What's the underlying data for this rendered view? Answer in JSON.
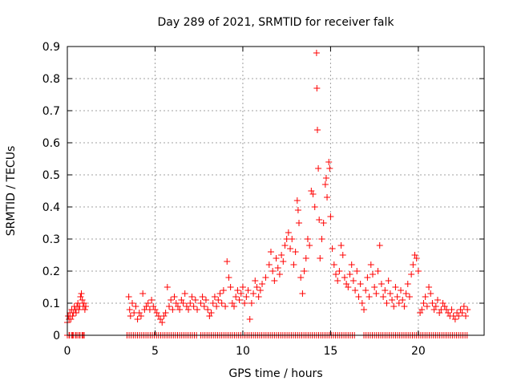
{
  "chart_data": {
    "type": "scatter",
    "title": "Day 289 of 2021, SRMTID for receiver falk",
    "xlabel": "GPS time / hours",
    "ylabel": "SRMTID / TECUs",
    "xlim": [
      0,
      23.75
    ],
    "ylim": [
      0,
      0.9
    ],
    "xticks": [
      0,
      5,
      10,
      15,
      20
    ],
    "xtick_labels": [
      "0",
      "5",
      "10",
      "15",
      "20"
    ],
    "yticks": [
      0,
      0.1,
      0.2,
      0.3,
      0.4,
      0.5,
      0.6,
      0.7,
      0.8,
      0.9
    ],
    "ytick_labels": [
      "0",
      "0.1",
      "0.2",
      "0.3",
      "0.4",
      "0.5",
      "0.6",
      "0.7",
      "0.8",
      "0.9"
    ],
    "grid": true,
    "series": [
      {
        "name": "SRMTID",
        "color": "#ff0000",
        "marker": "plus",
        "points": [
          [
            0.0,
            0.04
          ],
          [
            0.05,
            0.06
          ],
          [
            0.1,
            0.05
          ],
          [
            0.15,
            0.07
          ],
          [
            0.2,
            0.05
          ],
          [
            0.25,
            0.08
          ],
          [
            0.3,
            0.06
          ],
          [
            0.35,
            0.07
          ],
          [
            0.4,
            0.09
          ],
          [
            0.45,
            0.08
          ],
          [
            0.5,
            0.07
          ],
          [
            0.55,
            0.09
          ],
          [
            0.6,
            0.1
          ],
          [
            0.65,
            0.08
          ],
          [
            0.7,
            0.09
          ],
          [
            0.75,
            0.12
          ],
          [
            0.8,
            0.13
          ],
          [
            0.85,
            0.11
          ],
          [
            0.9,
            0.09
          ],
          [
            0.95,
            0.1
          ],
          [
            1.0,
            0.08
          ],
          [
            1.05,
            0.09
          ],
          [
            0.1,
            0.0
          ],
          [
            0.3,
            0.0
          ],
          [
            0.5,
            0.0
          ],
          [
            0.7,
            0.0
          ],
          [
            0.9,
            0.0
          ],
          [
            3.5,
            0.12
          ],
          [
            3.55,
            0.08
          ],
          [
            3.6,
            0.06
          ],
          [
            3.7,
            0.1
          ],
          [
            3.8,
            0.07
          ],
          [
            3.9,
            0.09
          ],
          [
            4.0,
            0.05
          ],
          [
            4.1,
            0.07
          ],
          [
            4.2,
            0.06
          ],
          [
            4.3,
            0.13
          ],
          [
            4.4,
            0.08
          ],
          [
            4.5,
            0.09
          ],
          [
            4.6,
            0.1
          ],
          [
            4.7,
            0.08
          ],
          [
            4.8,
            0.11
          ],
          [
            4.9,
            0.09
          ],
          [
            5.0,
            0.08
          ],
          [
            5.1,
            0.07
          ],
          [
            5.2,
            0.06
          ],
          [
            5.3,
            0.05
          ],
          [
            5.4,
            0.04
          ],
          [
            5.5,
            0.06
          ],
          [
            5.6,
            0.07
          ],
          [
            5.7,
            0.15
          ],
          [
            5.8,
            0.09
          ],
          [
            5.9,
            0.11
          ],
          [
            6.0,
            0.08
          ],
          [
            6.1,
            0.12
          ],
          [
            6.2,
            0.1
          ],
          [
            6.3,
            0.09
          ],
          [
            6.4,
            0.08
          ],
          [
            6.5,
            0.11
          ],
          [
            6.6,
            0.1
          ],
          [
            6.7,
            0.13
          ],
          [
            6.8,
            0.09
          ],
          [
            6.9,
            0.08
          ],
          [
            7.0,
            0.1
          ],
          [
            7.1,
            0.12
          ],
          [
            7.2,
            0.09
          ],
          [
            7.3,
            0.11
          ],
          [
            7.4,
            0.08
          ],
          [
            7.6,
            0.1
          ],
          [
            7.7,
            0.12
          ],
          [
            7.8,
            0.09
          ],
          [
            7.9,
            0.11
          ],
          [
            8.0,
            0.08
          ],
          [
            8.1,
            0.06
          ],
          [
            8.2,
            0.07
          ],
          [
            8.3,
            0.1
          ],
          [
            8.4,
            0.12
          ],
          [
            8.5,
            0.09
          ],
          [
            8.6,
            0.11
          ],
          [
            8.7,
            0.13
          ],
          [
            8.8,
            0.1
          ],
          [
            8.9,
            0.14
          ],
          [
            9.0,
            0.09
          ],
          [
            9.1,
            0.23
          ],
          [
            9.2,
            0.18
          ],
          [
            9.3,
            0.15
          ],
          [
            9.4,
            0.1
          ],
          [
            9.5,
            0.09
          ],
          [
            9.6,
            0.12
          ],
          [
            9.7,
            0.14
          ],
          [
            9.8,
            0.11
          ],
          [
            9.9,
            0.13
          ],
          [
            10.0,
            0.15
          ],
          [
            10.1,
            0.1
          ],
          [
            10.2,
            0.12
          ],
          [
            10.3,
            0.14
          ],
          [
            10.4,
            0.05
          ],
          [
            10.5,
            0.1
          ],
          [
            10.6,
            0.13
          ],
          [
            10.7,
            0.17
          ],
          [
            10.8,
            0.15
          ],
          [
            10.9,
            0.12
          ],
          [
            11.0,
            0.14
          ],
          [
            11.1,
            0.16
          ],
          [
            11.3,
            0.18
          ],
          [
            11.5,
            0.22
          ],
          [
            11.6,
            0.26
          ],
          [
            11.7,
            0.2
          ],
          [
            11.8,
            0.17
          ],
          [
            11.9,
            0.24
          ],
          [
            12.0,
            0.21
          ],
          [
            12.1,
            0.19
          ],
          [
            12.2,
            0.25
          ],
          [
            12.3,
            0.23
          ],
          [
            12.4,
            0.28
          ],
          [
            12.5,
            0.3
          ],
          [
            12.6,
            0.32
          ],
          [
            12.7,
            0.27
          ],
          [
            12.8,
            0.3
          ],
          [
            12.9,
            0.22
          ],
          [
            13.0,
            0.26
          ],
          [
            13.1,
            0.42
          ],
          [
            13.15,
            0.39
          ],
          [
            13.2,
            0.35
          ],
          [
            13.3,
            0.18
          ],
          [
            13.4,
            0.13
          ],
          [
            13.5,
            0.2
          ],
          [
            13.6,
            0.24
          ],
          [
            13.7,
            0.3
          ],
          [
            13.8,
            0.28
          ],
          [
            13.9,
            0.45
          ],
          [
            14.0,
            0.44
          ],
          [
            14.1,
            0.4
          ],
          [
            14.2,
            0.88
          ],
          [
            14.22,
            0.77
          ],
          [
            14.25,
            0.64
          ],
          [
            14.3,
            0.52
          ],
          [
            14.35,
            0.36
          ],
          [
            14.4,
            0.24
          ],
          [
            14.5,
            0.3
          ],
          [
            14.6,
            0.35
          ],
          [
            14.7,
            0.47
          ],
          [
            14.75,
            0.49
          ],
          [
            14.8,
            0.43
          ],
          [
            14.9,
            0.54
          ],
          [
            14.95,
            0.52
          ],
          [
            15.0,
            0.37
          ],
          [
            15.1,
            0.27
          ],
          [
            15.2,
            0.22
          ],
          [
            15.3,
            0.19
          ],
          [
            15.4,
            0.17
          ],
          [
            15.5,
            0.2
          ],
          [
            15.6,
            0.28
          ],
          [
            15.7,
            0.25
          ],
          [
            15.8,
            0.18
          ],
          [
            15.9,
            0.16
          ],
          [
            16.0,
            0.15
          ],
          [
            16.1,
            0.19
          ],
          [
            16.2,
            0.22
          ],
          [
            16.3,
            0.17
          ],
          [
            16.4,
            0.14
          ],
          [
            16.5,
            0.2
          ],
          [
            16.6,
            0.12
          ],
          [
            16.7,
            0.16
          ],
          [
            16.8,
            0.1
          ],
          [
            16.9,
            0.08
          ],
          [
            17.0,
            0.14
          ],
          [
            17.1,
            0.18
          ],
          [
            17.2,
            0.12
          ],
          [
            17.3,
            0.22
          ],
          [
            17.4,
            0.19
          ],
          [
            17.5,
            0.15
          ],
          [
            17.6,
            0.13
          ],
          [
            17.7,
            0.2
          ],
          [
            17.8,
            0.28
          ],
          [
            17.9,
            0.16
          ],
          [
            18.0,
            0.12
          ],
          [
            18.1,
            0.14
          ],
          [
            18.2,
            0.1
          ],
          [
            18.3,
            0.17
          ],
          [
            18.4,
            0.13
          ],
          [
            18.5,
            0.11
          ],
          [
            18.6,
            0.09
          ],
          [
            18.7,
            0.15
          ],
          [
            18.8,
            0.12
          ],
          [
            18.9,
            0.1
          ],
          [
            19.0,
            0.14
          ],
          [
            19.1,
            0.11
          ],
          [
            19.2,
            0.09
          ],
          [
            19.3,
            0.13
          ],
          [
            19.4,
            0.16
          ],
          [
            19.5,
            0.12
          ],
          [
            19.6,
            0.19
          ],
          [
            19.7,
            0.22
          ],
          [
            19.8,
            0.25
          ],
          [
            19.9,
            0.24
          ],
          [
            20.0,
            0.2
          ],
          [
            20.1,
            0.07
          ],
          [
            20.2,
            0.08
          ],
          [
            20.3,
            0.1
          ],
          [
            20.4,
            0.12
          ],
          [
            20.5,
            0.09
          ],
          [
            20.6,
            0.15
          ],
          [
            20.7,
            0.13
          ],
          [
            20.8,
            0.1
          ],
          [
            20.9,
            0.08
          ],
          [
            21.0,
            0.09
          ],
          [
            21.1,
            0.11
          ],
          [
            21.2,
            0.07
          ],
          [
            21.3,
            0.08
          ],
          [
            21.4,
            0.1
          ],
          [
            21.5,
            0.09
          ],
          [
            21.6,
            0.08
          ],
          [
            21.7,
            0.07
          ],
          [
            21.8,
            0.06
          ],
          [
            21.9,
            0.08
          ],
          [
            22.0,
            0.06
          ],
          [
            22.1,
            0.05
          ],
          [
            22.2,
            0.07
          ],
          [
            22.3,
            0.06
          ],
          [
            22.4,
            0.08
          ],
          [
            22.5,
            0.07
          ],
          [
            22.6,
            0.09
          ],
          [
            22.7,
            0.06
          ],
          [
            22.8,
            0.08
          ]
        ],
        "zero_ranges": [
          [
            0.0,
            1.05
          ],
          [
            3.4,
            7.4
          ],
          [
            7.6,
            16.4
          ],
          [
            16.9,
            22.8
          ]
        ]
      }
    ]
  }
}
